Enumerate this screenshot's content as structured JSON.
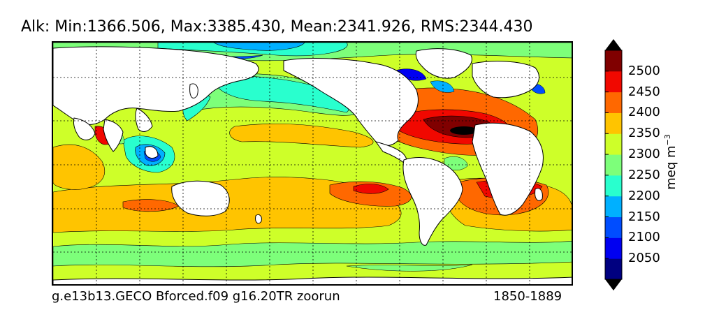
{
  "title": "Alk: Min:1366.506, Max:3385.430, Mean:2341.926, RMS:2344.430",
  "footer": {
    "case_name": "g.e13b13.GECO Bforced.f09 g16.20TR zoorun",
    "period": "1850-1889"
  },
  "colorbar": {
    "unit": "meq m",
    "unit_exponent": "−3",
    "levels": [
      2025,
      2050,
      2100,
      2150,
      2200,
      2250,
      2300,
      2350,
      2400,
      2450,
      2500,
      2525
    ],
    "tick_labels": [
      "2050",
      "2100",
      "2150",
      "2200",
      "2250",
      "2300",
      "2350",
      "2400",
      "2450",
      "2500"
    ],
    "colors": [
      "#000080",
      "#0000f1",
      "#004dff",
      "#00b0ff",
      "#29ffce",
      "#7dff7a",
      "#ceff29",
      "#ffc400",
      "#ff6800",
      "#f10800",
      "#800000"
    ],
    "extend": "both",
    "under_color": "#000000",
    "over_color": "#000000"
  },
  "map": {
    "projection": "cylindrical",
    "land_color": "#ffffff",
    "contour_line_color": "#000000",
    "gridlines": "dotted",
    "min_value": 1366.506,
    "max_value": 3385.43,
    "mean_value": 2341.926,
    "rms_value": 2344.43
  }
}
